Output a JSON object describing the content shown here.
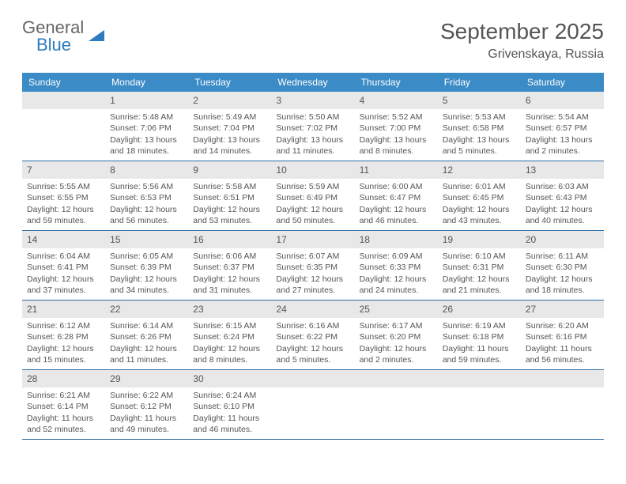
{
  "logo": {
    "word1": "General",
    "word2": "Blue"
  },
  "title": "September 2025",
  "location": "Grivenskaya, Russia",
  "colors": {
    "header_bg": "#3b8bc7",
    "header_text": "#ffffff",
    "daynum_bg": "#e8e8e8",
    "border": "#2f6fa5",
    "text": "#555555",
    "logo_gray": "#666666",
    "logo_blue": "#2f7bbf",
    "page_bg": "#ffffff"
  },
  "weekdays": [
    "Sunday",
    "Monday",
    "Tuesday",
    "Wednesday",
    "Thursday",
    "Friday",
    "Saturday"
  ],
  "leading_blanks": 1,
  "days": [
    {
      "n": 1,
      "sunrise": "5:48 AM",
      "sunset": "7:06 PM",
      "daylight": "13 hours and 18 minutes."
    },
    {
      "n": 2,
      "sunrise": "5:49 AM",
      "sunset": "7:04 PM",
      "daylight": "13 hours and 14 minutes."
    },
    {
      "n": 3,
      "sunrise": "5:50 AM",
      "sunset": "7:02 PM",
      "daylight": "13 hours and 11 minutes."
    },
    {
      "n": 4,
      "sunrise": "5:52 AM",
      "sunset": "7:00 PM",
      "daylight": "13 hours and 8 minutes."
    },
    {
      "n": 5,
      "sunrise": "5:53 AM",
      "sunset": "6:58 PM",
      "daylight": "13 hours and 5 minutes."
    },
    {
      "n": 6,
      "sunrise": "5:54 AM",
      "sunset": "6:57 PM",
      "daylight": "13 hours and 2 minutes."
    },
    {
      "n": 7,
      "sunrise": "5:55 AM",
      "sunset": "6:55 PM",
      "daylight": "12 hours and 59 minutes."
    },
    {
      "n": 8,
      "sunrise": "5:56 AM",
      "sunset": "6:53 PM",
      "daylight": "12 hours and 56 minutes."
    },
    {
      "n": 9,
      "sunrise": "5:58 AM",
      "sunset": "6:51 PM",
      "daylight": "12 hours and 53 minutes."
    },
    {
      "n": 10,
      "sunrise": "5:59 AM",
      "sunset": "6:49 PM",
      "daylight": "12 hours and 50 minutes."
    },
    {
      "n": 11,
      "sunrise": "6:00 AM",
      "sunset": "6:47 PM",
      "daylight": "12 hours and 46 minutes."
    },
    {
      "n": 12,
      "sunrise": "6:01 AM",
      "sunset": "6:45 PM",
      "daylight": "12 hours and 43 minutes."
    },
    {
      "n": 13,
      "sunrise": "6:03 AM",
      "sunset": "6:43 PM",
      "daylight": "12 hours and 40 minutes."
    },
    {
      "n": 14,
      "sunrise": "6:04 AM",
      "sunset": "6:41 PM",
      "daylight": "12 hours and 37 minutes."
    },
    {
      "n": 15,
      "sunrise": "6:05 AM",
      "sunset": "6:39 PM",
      "daylight": "12 hours and 34 minutes."
    },
    {
      "n": 16,
      "sunrise": "6:06 AM",
      "sunset": "6:37 PM",
      "daylight": "12 hours and 31 minutes."
    },
    {
      "n": 17,
      "sunrise": "6:07 AM",
      "sunset": "6:35 PM",
      "daylight": "12 hours and 27 minutes."
    },
    {
      "n": 18,
      "sunrise": "6:09 AM",
      "sunset": "6:33 PM",
      "daylight": "12 hours and 24 minutes."
    },
    {
      "n": 19,
      "sunrise": "6:10 AM",
      "sunset": "6:31 PM",
      "daylight": "12 hours and 21 minutes."
    },
    {
      "n": 20,
      "sunrise": "6:11 AM",
      "sunset": "6:30 PM",
      "daylight": "12 hours and 18 minutes."
    },
    {
      "n": 21,
      "sunrise": "6:12 AM",
      "sunset": "6:28 PM",
      "daylight": "12 hours and 15 minutes."
    },
    {
      "n": 22,
      "sunrise": "6:14 AM",
      "sunset": "6:26 PM",
      "daylight": "12 hours and 11 minutes."
    },
    {
      "n": 23,
      "sunrise": "6:15 AM",
      "sunset": "6:24 PM",
      "daylight": "12 hours and 8 minutes."
    },
    {
      "n": 24,
      "sunrise": "6:16 AM",
      "sunset": "6:22 PM",
      "daylight": "12 hours and 5 minutes."
    },
    {
      "n": 25,
      "sunrise": "6:17 AM",
      "sunset": "6:20 PM",
      "daylight": "12 hours and 2 minutes."
    },
    {
      "n": 26,
      "sunrise": "6:19 AM",
      "sunset": "6:18 PM",
      "daylight": "11 hours and 59 minutes."
    },
    {
      "n": 27,
      "sunrise": "6:20 AM",
      "sunset": "6:16 PM",
      "daylight": "11 hours and 56 minutes."
    },
    {
      "n": 28,
      "sunrise": "6:21 AM",
      "sunset": "6:14 PM",
      "daylight": "11 hours and 52 minutes."
    },
    {
      "n": 29,
      "sunrise": "6:22 AM",
      "sunset": "6:12 PM",
      "daylight": "11 hours and 49 minutes."
    },
    {
      "n": 30,
      "sunrise": "6:24 AM",
      "sunset": "6:10 PM",
      "daylight": "11 hours and 46 minutes."
    }
  ],
  "labels": {
    "sunrise": "Sunrise:",
    "sunset": "Sunset:",
    "daylight": "Daylight:"
  }
}
